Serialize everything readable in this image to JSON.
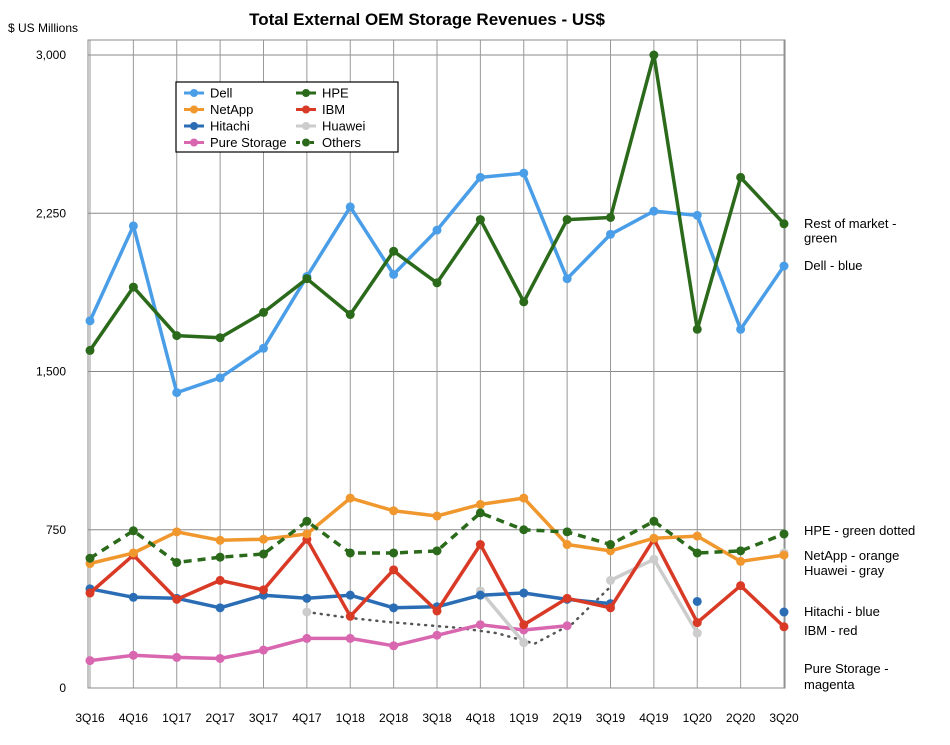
{
  "chart_data": {
    "type": "line",
    "title": "Total External OEM Storage Revenues - US$",
    "ylabel": "$ US Millions",
    "xlabel": "",
    "grid": true,
    "legend_placement": "top-left",
    "ylim": [
      0,
      3000
    ],
    "ytick_labels": [
      "0",
      "750",
      "1,500",
      "2,250",
      "3,000"
    ],
    "categories": [
      "3Q16",
      "4Q16",
      "1Q17",
      "2Q17",
      "3Q17",
      "4Q17",
      "1Q18",
      "2Q18",
      "3Q18",
      "4Q18",
      "1Q19",
      "2Q19",
      "3Q19",
      "4Q19",
      "1Q20",
      "2Q20",
      "3Q20"
    ],
    "xtick_labels": [
      "3Q16",
      "4Q16",
      "1Q17",
      "2Q17",
      "3Q17",
      "4Q17",
      "1Q18",
      "2Q18",
      "3Q18",
      "4Q18",
      "1Q19",
      "2Q19",
      "3Q19",
      "4Q19",
      "1Q20",
      "2Q20",
      "3Q20"
    ],
    "series": [
      {
        "name": "Dell",
        "color": "#4a9ee8",
        "style": "solid",
        "values": [
          1740,
          2190,
          1400,
          1470,
          1610,
          1950,
          2280,
          1960,
          2170,
          2420,
          2440,
          1940,
          2150,
          2260,
          2240,
          1700,
          2000
        ]
      },
      {
        "name": "NetApp",
        "color": "#f0972e",
        "style": "solid",
        "values": [
          590,
          640,
          740,
          700,
          705,
          730,
          900,
          840,
          815,
          870,
          900,
          680,
          650,
          710,
          720,
          600,
          630
        ]
      },
      {
        "name": "Hitachi",
        "color": "#2a6db5",
        "style": "solid",
        "values": [
          470,
          430,
          425,
          380,
          440,
          425,
          440,
          380,
          385,
          440,
          450,
          420,
          400,
          null,
          410,
          null,
          360
        ]
      },
      {
        "name": "Pure Storage",
        "color": "#d867b0",
        "style": "solid",
        "values": [
          130,
          155,
          145,
          140,
          180,
          235,
          235,
          200,
          250,
          300,
          275,
          295,
          null,
          null,
          null,
          null,
          null
        ]
      },
      {
        "name": "HPE",
        "color": "#2a6a1a",
        "style": "solid",
        "values": [
          1600,
          1900,
          1670,
          1660,
          1780,
          1940,
          1770,
          2070,
          1920,
          2220,
          1830,
          2220,
          2230,
          3000,
          1700,
          2420,
          2200
        ]
      },
      {
        "name": "IBM",
        "color": "#d93a26",
        "style": "solid",
        "values": [
          450,
          630,
          420,
          510,
          465,
          705,
          340,
          560,
          365,
          680,
          300,
          425,
          380,
          705,
          310,
          485,
          290
        ]
      },
      {
        "name": "Huawei",
        "color": "#cccccc",
        "style": "solid",
        "values": [
          null,
          null,
          null,
          null,
          null,
          360,
          null,
          null,
          null,
          460,
          215,
          null,
          510,
          610,
          260,
          null,
          640
        ]
      },
      {
        "name": "Others",
        "color": "#2a6a1a",
        "style": "dashed",
        "values": [
          615,
          745,
          595,
          620,
          635,
          790,
          640,
          640,
          650,
          830,
          750,
          740,
          680,
          790,
          640,
          650,
          730
        ]
      }
    ],
    "gray_dotted_trend": {
      "color": "#555555",
      "x_start": "4Q17",
      "x_end": "3Q19",
      "values": [
        360,
        335,
        315,
        300,
        285,
        260,
        210,
        305,
        480
      ]
    },
    "annotations": [
      {
        "text": "Rest of market -",
        "value": 2200
      },
      {
        "text": "green",
        "value": 2130
      },
      {
        "text": "Dell - blue",
        "value": 2000
      },
      {
        "text": "HPE - green dotted",
        "value": 745
      },
      {
        "text": "NetApp - orange",
        "value": 625
      },
      {
        "text": "Huawei - gray",
        "value": 555
      },
      {
        "text": "Hitachi - blue",
        "value": 360
      },
      {
        "text": "IBM - red",
        "value": 270
      },
      {
        "text": "Pure Storage -",
        "value": 90
      },
      {
        "text": "magenta",
        "value": 15
      }
    ]
  }
}
